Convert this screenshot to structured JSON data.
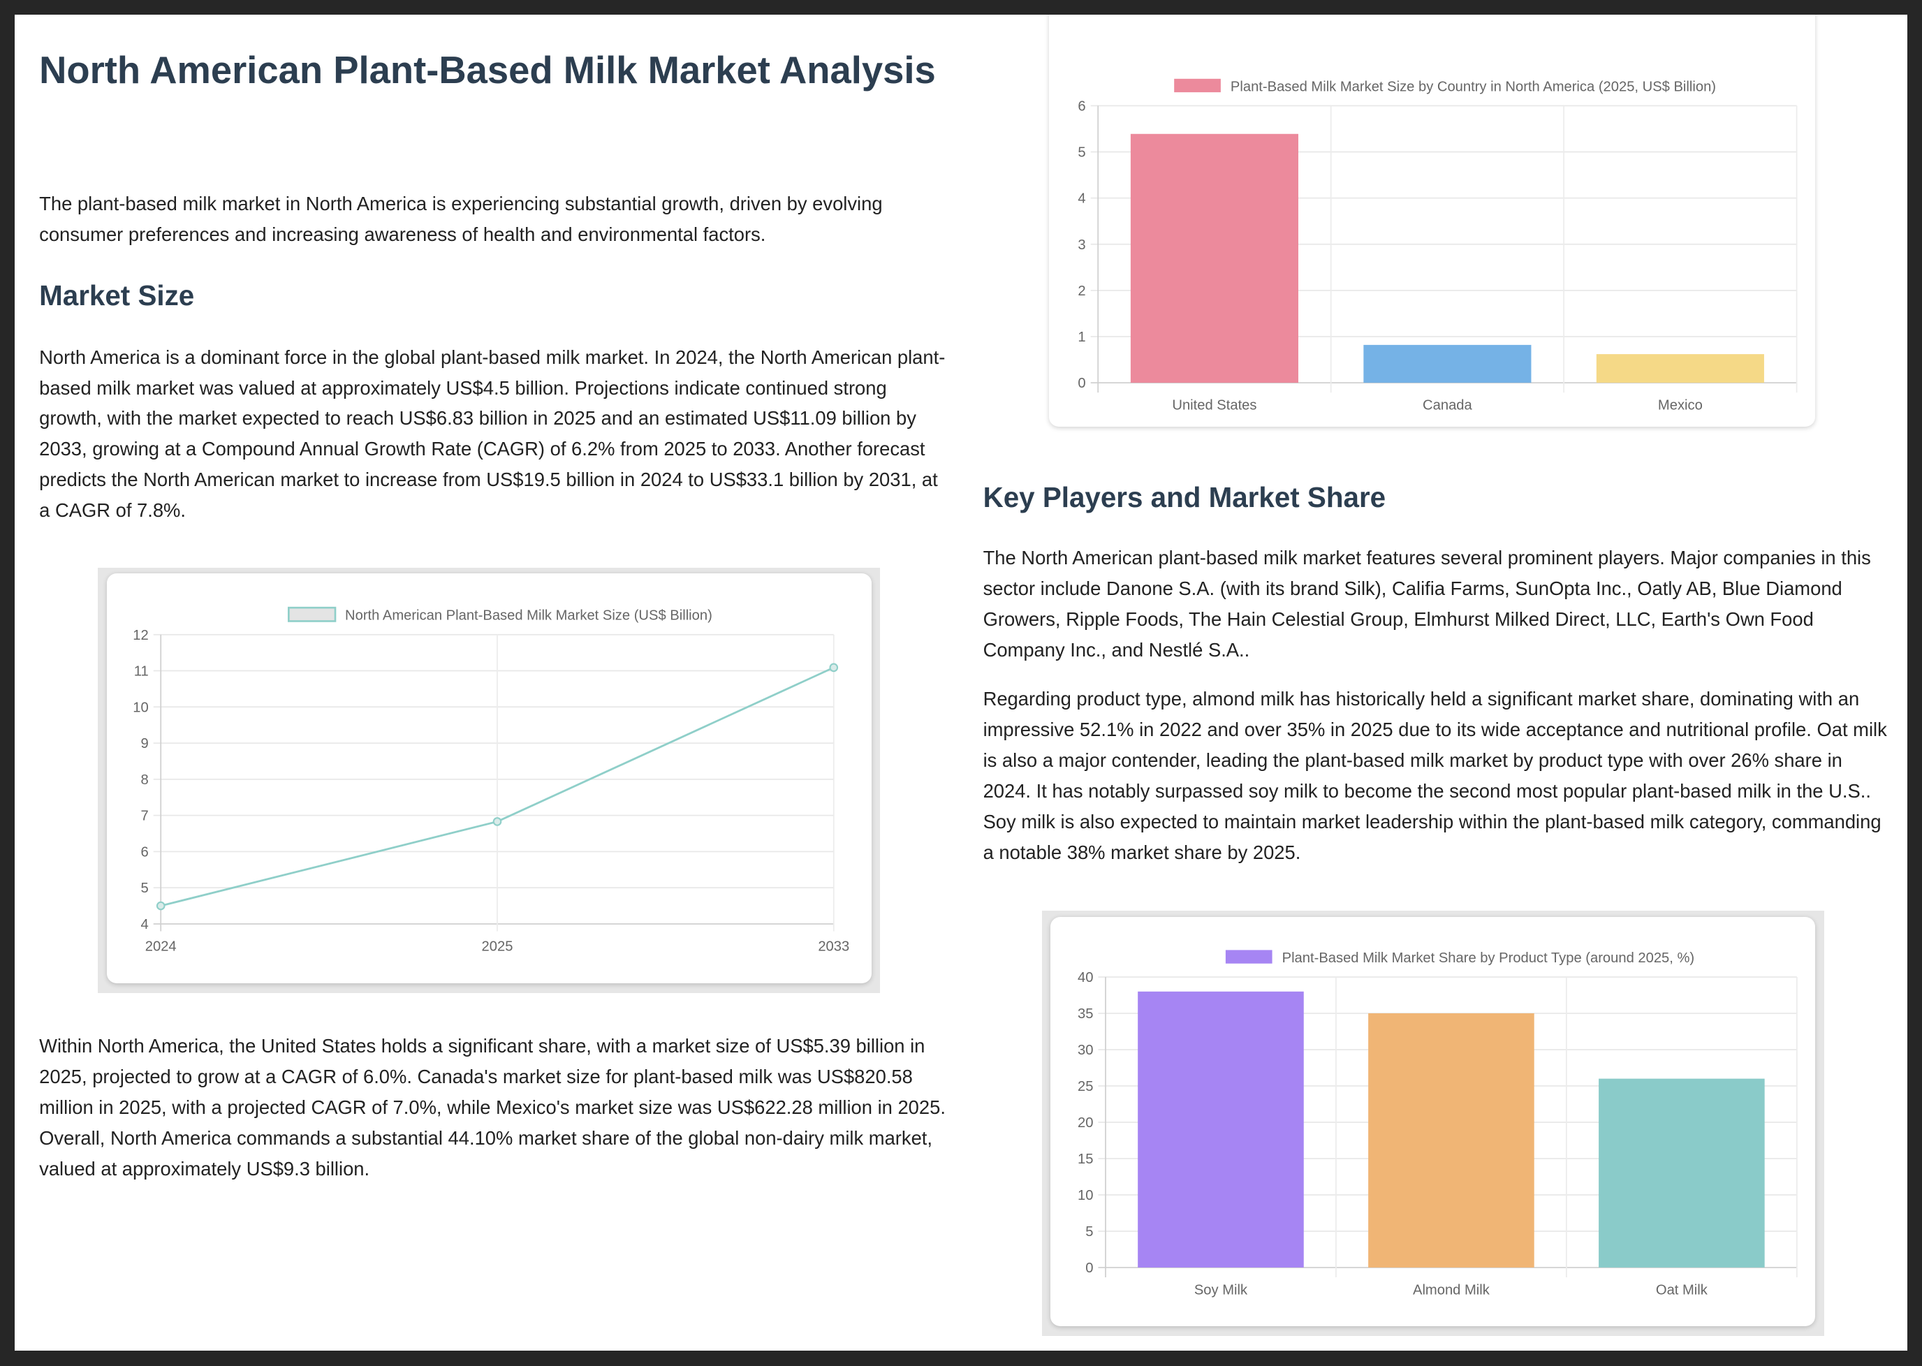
{
  "title": "North American Plant-Based Milk Market Analysis",
  "intro": "The plant-based milk market in North America is experiencing substantial growth, driven by evolving consumer preferences and increasing awareness of health and environmental factors.",
  "market_size": {
    "heading": "Market Size",
    "p1": "North America is a dominant force in the global plant-based milk market. In 2024, the North American plant-based milk market was valued at approximately US$4.5 billion. Projections indicate continued strong growth, with the market expected to reach US$6.83 billion in 2025 and an estimated US$11.09 billion by 2033, growing at a Compound Annual Growth Rate (CAGR) of 6.2% from 2025 to 2033. Another forecast predicts the North American market to increase from US$19.5 billion in 2024 to US$33.1 billion by 2031, at a CAGR of 7.8%.",
    "p2": "Within North America, the United States holds a significant share, with a market size of US$5.39 billion in 2025, projected to grow at a CAGR of 6.0%. Canada's market size for plant-based milk was US$820.58 million in 2025, with a projected CAGR of 7.0%, while Mexico's market size was US$622.28 million in 2025. Overall, North America commands a substantial 44.10% market share of the global non-dairy milk market, valued at approximately US$9.3 billion."
  },
  "key_players": {
    "heading": "Key Players and Market Share",
    "p1": "The North American plant-based milk market features several prominent players. Major companies in this sector include Danone S.A. (with its brand Silk), Califia Farms, SunOpta Inc., Oatly AB, Blue Diamond Growers, Ripple Foods, The Hain Celestial Group, Elmhurst Milked Direct, LLC, Earth's Own Food Company Inc., and Nestlé S.A..",
    "p2": "Regarding product type, almond milk has historically held a significant market share, dominating with an impressive 52.1% in 2022 and over 35% in 2025 due to its wide acceptance and nutritional profile. Oat milk is also a major contender, leading the plant-based milk market by product type with over 26% share in 2024. It has notably surpassed soy milk to become the second most popular plant-based milk in the U.S.. Soy milk is also expected to maintain market leadership within the plant-based milk category, commanding a notable 38% market share by 2025."
  },
  "chart_data": [
    {
      "id": "country",
      "type": "bar",
      "legend": "Plant-Based Milk Market Size by Country in North America (2025, US$ Billion)",
      "legend_placement": "top",
      "categories": [
        "United States",
        "Canada",
        "Mexico"
      ],
      "values": [
        5.39,
        0.82,
        0.62
      ],
      "colors": [
        "#ec8a9c",
        "#75b2e6",
        "#f5d987"
      ],
      "ylim": [
        0,
        6
      ],
      "yticks": [
        0,
        1,
        2,
        3,
        4,
        5,
        6
      ],
      "grid": true
    },
    {
      "id": "size",
      "type": "line",
      "legend": "North American Plant-Based Milk Market Size (US$ Billion)",
      "legend_placement": "top",
      "categories": [
        "2024",
        "2025",
        "2033"
      ],
      "values": [
        4.5,
        6.83,
        11.09
      ],
      "color": "#8fcfc9",
      "ylim": [
        4,
        12
      ],
      "yticks": [
        4,
        5,
        6,
        7,
        8,
        9,
        10,
        11,
        12
      ],
      "grid": true
    },
    {
      "id": "product",
      "type": "bar",
      "legend": "Plant-Based Milk Market Share by Product Type (around 2025, %)",
      "legend_placement": "top",
      "categories": [
        "Soy Milk",
        "Almond Milk",
        "Oat Milk"
      ],
      "values": [
        38,
        35,
        26
      ],
      "colors": [
        "#a685f3",
        "#f0b575",
        "#8acbc9"
      ],
      "ylim": [
        0,
        40
      ],
      "yticks": [
        0,
        5,
        10,
        15,
        20,
        25,
        30,
        35,
        40
      ],
      "grid": true
    }
  ]
}
